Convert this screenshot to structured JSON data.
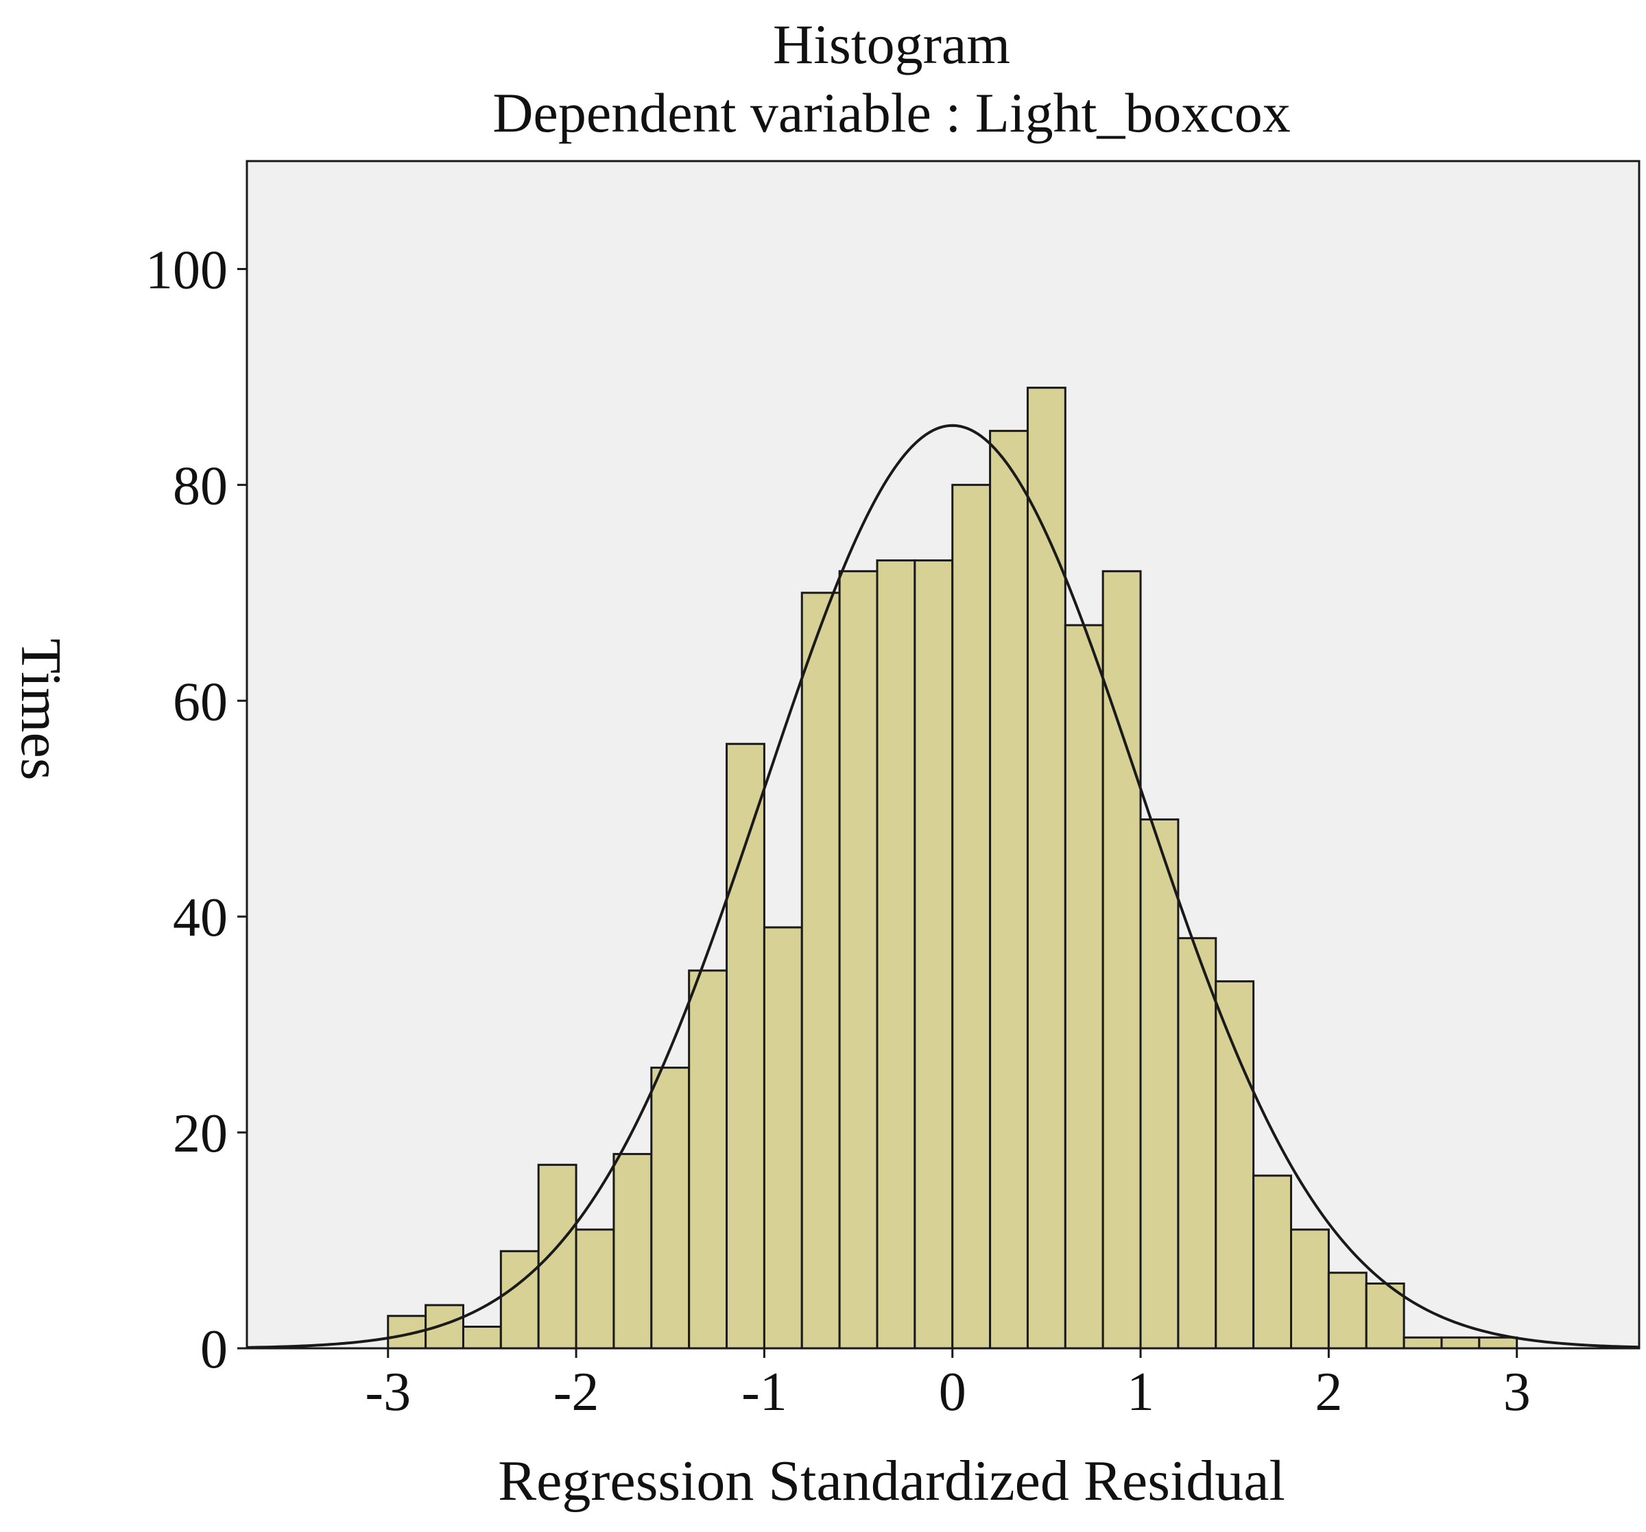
{
  "chart_data": {
    "type": "bar",
    "title": "Histogram",
    "subtitle": "Dependent variable : Light_boxcox",
    "xlabel": "Regression Standardized Residual",
    "ylabel": "Times",
    "xlim": [
      -3.75,
      3.65
    ],
    "ylim": [
      0,
      110
    ],
    "x_ticks": [
      -3,
      -2,
      -1,
      0,
      1,
      2,
      3
    ],
    "x_tick_labels": [
      "-3",
      "-2",
      "-1",
      "0",
      "1",
      "2",
      "3"
    ],
    "y_ticks": [
      0,
      20,
      40,
      60,
      80,
      100
    ],
    "y_tick_labels": [
      "0",
      "20",
      "40",
      "60",
      "80",
      "100"
    ],
    "grid": false,
    "bin_width": 0.2,
    "bin_start": -3.0,
    "values": [
      3,
      4,
      2,
      9,
      17,
      11,
      18,
      26,
      35,
      56,
      39,
      70,
      72,
      73,
      73,
      80,
      85,
      89,
      67,
      72,
      49,
      38,
      34,
      16,
      11,
      7,
      6,
      1,
      1,
      1
    ],
    "normal_curve": {
      "mean": 0,
      "std": 1,
      "peak": 85.5
    },
    "colors": {
      "bar_fill": "#d8d195",
      "bar_stroke": "#1a1a1a",
      "plot_background": "#f0f0f0",
      "curve": "#1a1a1a"
    }
  }
}
